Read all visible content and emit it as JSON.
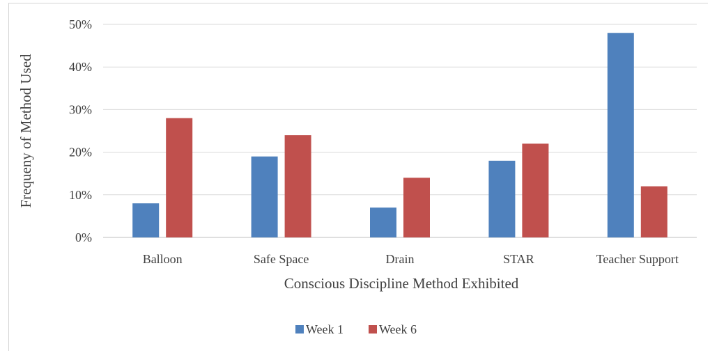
{
  "chart_data": {
    "type": "bar",
    "title": "",
    "xlabel": "Conscious Discipline Method Exhibited",
    "ylabel": "Frequeny of Method Used",
    "categories": [
      "Balloon",
      "Safe Space",
      "Drain",
      "STAR",
      "Teacher Support"
    ],
    "series": [
      {
        "name": "Week 1",
        "color": "#4f81bd",
        "values": [
          8,
          19,
          7,
          18,
          48
        ]
      },
      {
        "name": "Week 6",
        "color": "#c0504d",
        "values": [
          28,
          24,
          14,
          22,
          12
        ]
      }
    ],
    "ylim": [
      0,
      50
    ],
    "yticks": [
      "0%",
      "10%",
      "20%",
      "30%",
      "40%",
      "50%"
    ],
    "grid": true,
    "legend": "bottom-center"
  }
}
